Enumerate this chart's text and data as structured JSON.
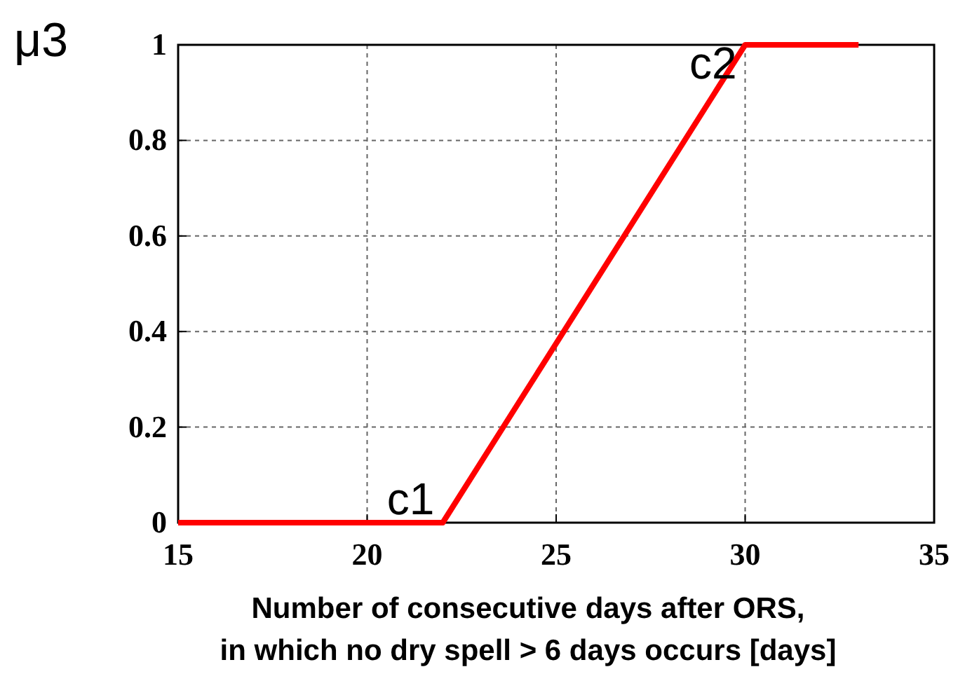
{
  "chart_data": {
    "type": "line",
    "ylabel": "μ3",
    "xlabel": "Number of consecutive days after ORS,\nin which no dry spell > 6 days occurs [days]",
    "x": [
      15,
      22,
      30,
      33
    ],
    "series": [
      {
        "color": "#ff0000",
        "values": [
          0,
          0,
          1,
          1
        ]
      }
    ],
    "xlim": [
      15,
      35
    ],
    "xticks": [
      15,
      20,
      25,
      30,
      35
    ],
    "ylim": [
      0,
      1
    ],
    "yticks": [
      0,
      0.2,
      0.4,
      0.6,
      0.8,
      1
    ],
    "grid": true,
    "line_style": "solid",
    "marker": "none",
    "annotations": [
      {
        "text": "c1",
        "x": 22,
        "y": 0
      },
      {
        "text": "c2",
        "x": 30,
        "y": 1
      }
    ]
  }
}
